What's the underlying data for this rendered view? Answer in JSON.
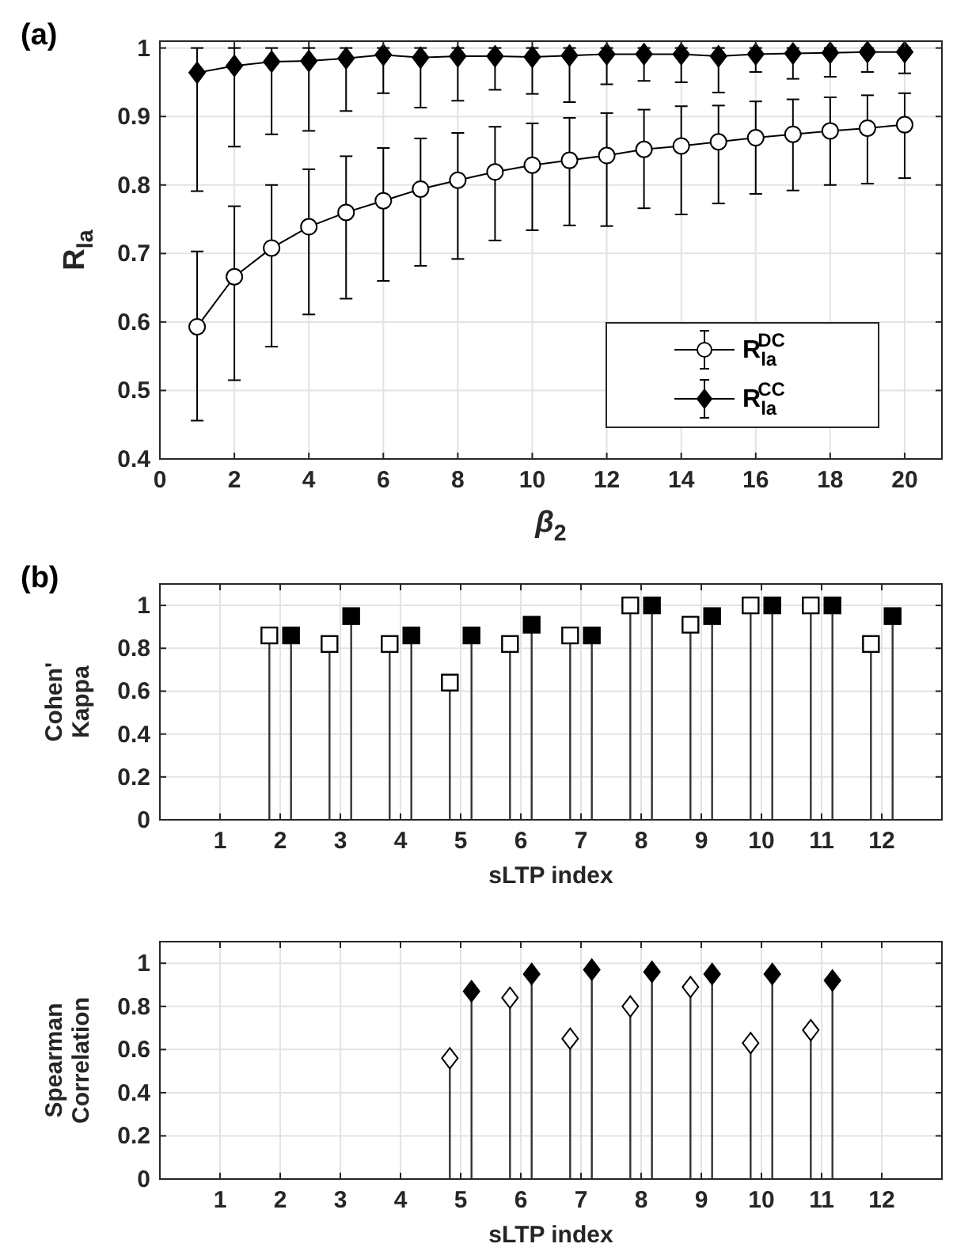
{
  "chart_data": [
    {
      "type": "line",
      "annotations": [
        "(a)"
      ],
      "xlabel": "β$_{2}$",
      "ylabel": "R$_{la}$",
      "xlim": [
        0,
        21
      ],
      "ylim": [
        0.4,
        1.01
      ],
      "xticks": [
        0,
        2,
        4,
        6,
        8,
        10,
        12,
        14,
        16,
        18,
        20
      ],
      "yticks": [
        0.4,
        0.5,
        0.6,
        0.7,
        0.8,
        0.9,
        1
      ],
      "grid": true,
      "legend": "bottom right",
      "x": [
        1,
        2,
        3,
        4,
        5,
        6,
        7,
        8,
        9,
        10,
        11,
        12,
        13,
        14,
        15,
        16,
        17,
        18,
        19,
        20
      ],
      "series": [
        {
          "name": "R$_{la}$$^{DC}$",
          "color": "#ffffff",
          "marker": "circle",
          "values": [
            0.593,
            0.666,
            0.708,
            0.739,
            0.76,
            0.777,
            0.794,
            0.807,
            0.819,
            0.829,
            0.836,
            0.843,
            0.852,
            0.857,
            0.863,
            0.869,
            0.874,
            0.879,
            0.883,
            0.888
          ],
          "errors": [
            [
              0.456,
              0.703
            ],
            [
              0.515,
              0.769
            ],
            [
              0.564,
              0.8
            ],
            [
              0.611,
              0.823
            ],
            [
              0.634,
              0.842
            ],
            [
              0.66,
              0.854
            ],
            [
              0.682,
              0.868
            ],
            [
              0.692,
              0.876
            ],
            [
              0.719,
              0.885
            ],
            [
              0.734,
              0.89
            ],
            [
              0.741,
              0.898
            ],
            [
              0.74,
              0.905
            ],
            [
              0.766,
              0.91
            ],
            [
              0.757,
              0.915
            ],
            [
              0.773,
              0.916
            ],
            [
              0.787,
              0.922
            ],
            [
              0.792,
              0.925
            ],
            [
              0.8,
              0.928
            ],
            [
              0.802,
              0.931
            ],
            [
              0.81,
              0.934
            ]
          ]
        },
        {
          "name": "R$_{la}$$^{CC}$",
          "color": "#000000",
          "marker": "diamond",
          "values": [
            0.964,
            0.974,
            0.98,
            0.981,
            0.985,
            0.99,
            0.986,
            0.988,
            0.988,
            0.987,
            0.989,
            0.991,
            0.991,
            0.991,
            0.988,
            0.991,
            0.992,
            0.993,
            0.994,
            0.994
          ],
          "errors": [
            [
              0.791,
              1.0
            ],
            [
              0.856,
              1.0
            ],
            [
              0.874,
              1.0
            ],
            [
              0.879,
              1.0
            ],
            [
              0.908,
              1.0
            ],
            [
              0.934,
              1.0
            ],
            [
              0.913,
              1.0
            ],
            [
              0.923,
              1.0
            ],
            [
              0.939,
              1.0
            ],
            [
              0.933,
              1.0
            ],
            [
              0.921,
              1.0
            ],
            [
              0.947,
              1.0
            ],
            [
              0.952,
              1.0
            ],
            [
              0.95,
              1.0
            ],
            [
              0.935,
              1.0
            ],
            [
              0.965,
              1.0
            ],
            [
              0.955,
              1.0
            ],
            [
              0.958,
              1.0
            ],
            [
              0.965,
              1.0
            ],
            [
              0.963,
              1.0
            ]
          ]
        }
      ]
    },
    {
      "type": "lollipop",
      "annotations": [
        "(b)"
      ],
      "xlabel": "sLTP index",
      "ylabel": "Cohen' Kappa",
      "xlim": [
        0,
        13
      ],
      "ylim": [
        0,
        1.1
      ],
      "xticks": [
        1,
        2,
        3,
        4,
        5,
        6,
        7,
        8,
        9,
        10,
        11,
        12
      ],
      "yticks": [
        0,
        0.2,
        0.4,
        0.6,
        0.8,
        1
      ],
      "grid": true,
      "series": [
        {
          "color": "#ffffff",
          "marker": "square",
          "x": [
            1.82,
            2.82,
            3.82,
            4.82,
            5.82,
            6.82,
            7.82,
            8.82,
            9.82,
            10.82,
            11.82
          ],
          "values": [
            0.86,
            0.82,
            0.82,
            0.64,
            0.82,
            0.86,
            1.0,
            0.91,
            1.0,
            1.0,
            0.82
          ]
        },
        {
          "color": "#000000",
          "marker": "square",
          "x": [
            2.18,
            3.18,
            4.18,
            5.18,
            6.18,
            7.18,
            8.18,
            9.18,
            10.18,
            11.18,
            12.18
          ],
          "values": [
            0.86,
            0.95,
            0.86,
            0.86,
            0.91,
            0.86,
            1.0,
            0.95,
            1.0,
            1.0,
            0.95
          ]
        }
      ]
    },
    {
      "type": "lollipop",
      "xlabel": "sLTP index",
      "ylabel": "Spearman Correlation",
      "xlim": [
        0,
        13
      ],
      "ylim": [
        0,
        1.1
      ],
      "xticks": [
        1,
        2,
        3,
        4,
        5,
        6,
        7,
        8,
        9,
        10,
        11,
        12
      ],
      "yticks": [
        0,
        0.2,
        0.4,
        0.6,
        0.8,
        1
      ],
      "grid": true,
      "series": [
        {
          "color": "#ffffff",
          "marker": "diamond",
          "x": [
            4.82,
            5.82,
            6.82,
            7.82,
            8.82,
            9.82,
            10.82
          ],
          "values": [
            0.56,
            0.84,
            0.65,
            0.8,
            0.89,
            0.63,
            0.69
          ]
        },
        {
          "color": "#000000",
          "marker": "diamond",
          "x": [
            5.18,
            6.18,
            7.18,
            8.18,
            9.18,
            10.18,
            11.18
          ],
          "values": [
            0.87,
            0.95,
            0.97,
            0.96,
            0.95,
            0.95,
            0.92
          ]
        }
      ]
    }
  ]
}
